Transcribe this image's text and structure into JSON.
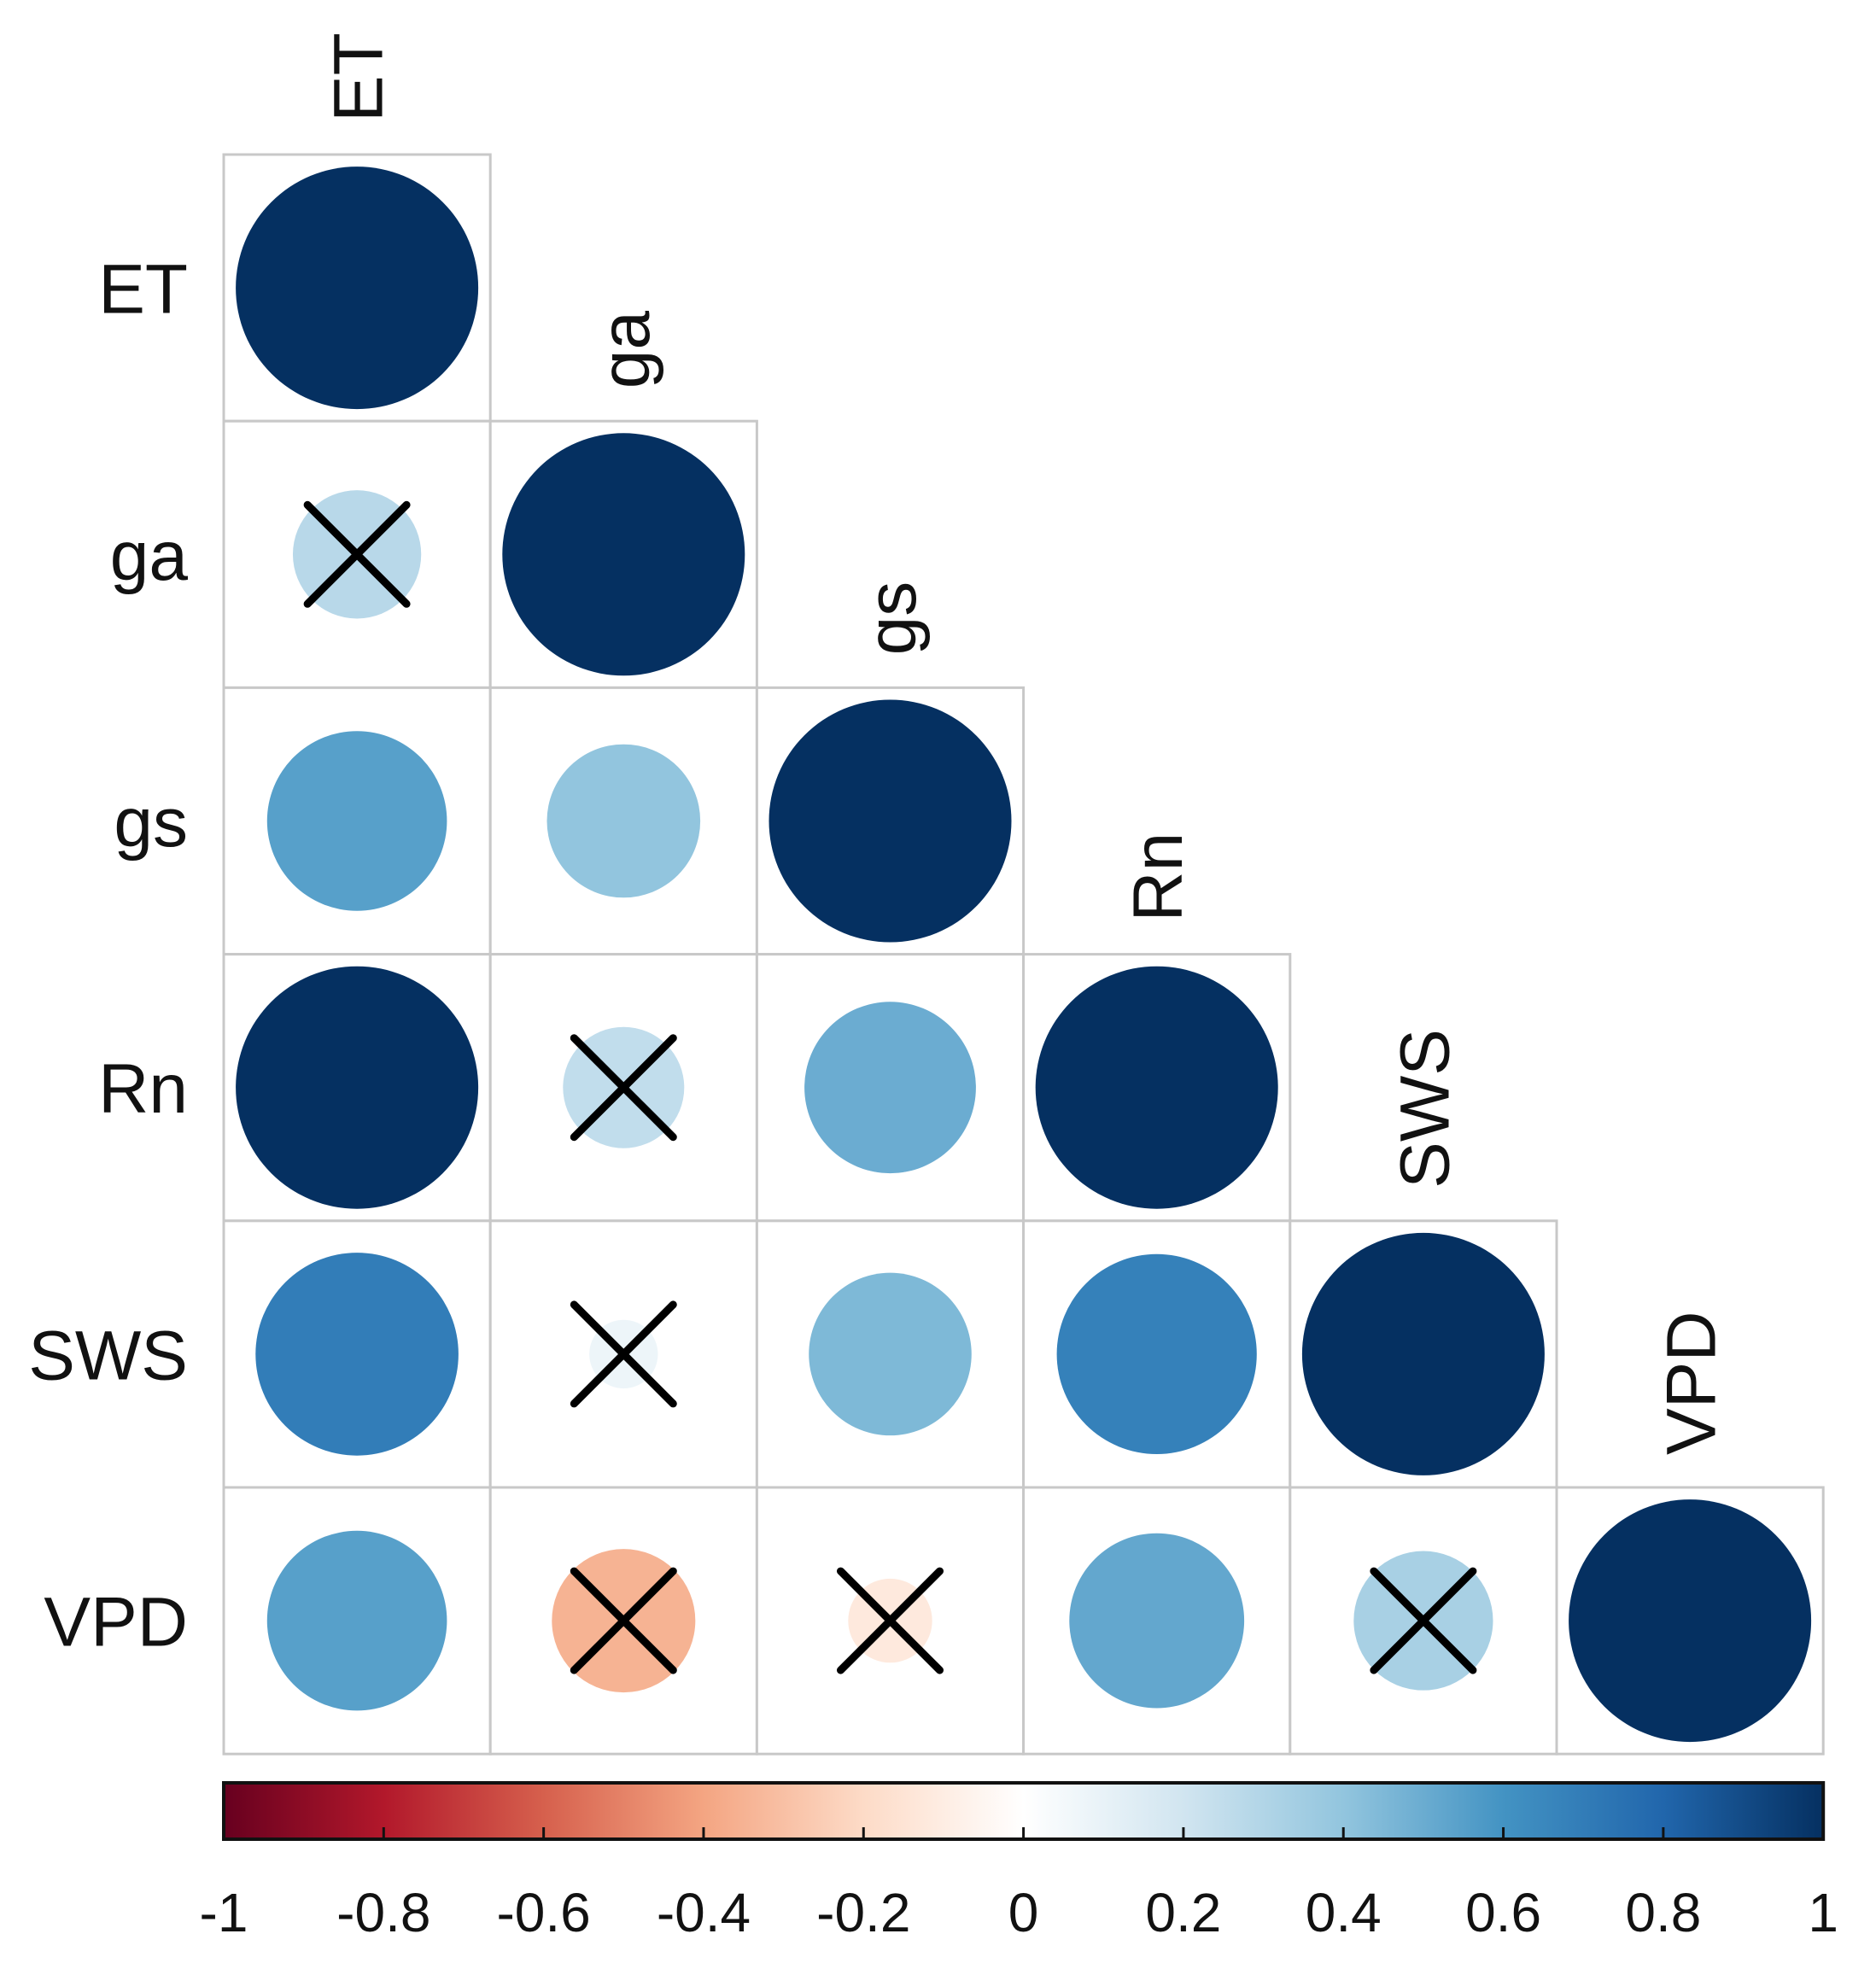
{
  "chart_data": {
    "type": "heatmap",
    "subtype": "correlation-matrix-lower-triangle-circles",
    "title": "",
    "variables": [
      "ET",
      "ga",
      "gs",
      "Rn",
      "SWS",
      "VPD"
    ],
    "matrix": [
      [
        1.0,
        null,
        null,
        null,
        null,
        null
      ],
      [
        0.28,
        1.0,
        null,
        null,
        null,
        null
      ],
      [
        0.55,
        0.4,
        1.0,
        null,
        null,
        null
      ],
      [
        1.0,
        0.25,
        0.5,
        1.0,
        null,
        null
      ],
      [
        0.7,
        0.08,
        0.45,
        0.68,
        1.0,
        null
      ],
      [
        0.55,
        -0.35,
        -0.12,
        0.52,
        0.33,
        1.0
      ]
    ],
    "not_significant": [
      [
        1,
        0
      ],
      [
        3,
        1
      ],
      [
        4,
        1
      ],
      [
        5,
        1
      ],
      [
        5,
        2
      ],
      [
        5,
        4
      ]
    ],
    "colorbar": {
      "range": [
        -1,
        1
      ],
      "tick_labels": [
        "-1",
        "-0.8",
        "-0.6",
        "-0.4",
        "-0.2",
        "0",
        "0.2",
        "0.4",
        "0.6",
        "0.8",
        "1"
      ],
      "placement": "bottom",
      "stops": [
        "#67001f",
        "#b2182b",
        "#d6604d",
        "#f4a582",
        "#fddbc7",
        "#ffffff",
        "#d1e5f0",
        "#92c5de",
        "#4393c3",
        "#2166ac",
        "#053061"
      ]
    },
    "grid": true
  }
}
